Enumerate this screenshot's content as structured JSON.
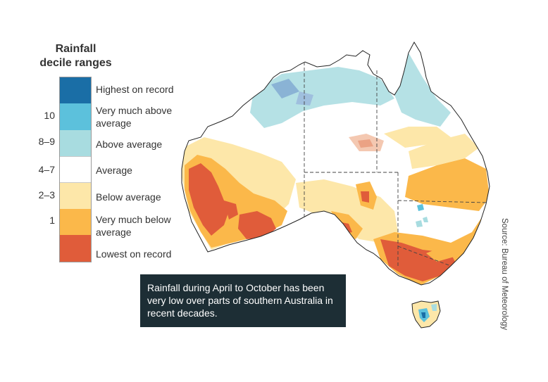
{
  "legend": {
    "title_line1": "Rainfall",
    "title_line2": "decile ranges",
    "items": [
      {
        "decile": "",
        "label": "Highest on record",
        "color": "#1a6ea6"
      },
      {
        "decile": "10",
        "label": "Very much above average",
        "color": "#5cc1dc"
      },
      {
        "decile": "8–9",
        "label": "Above average",
        "color": "#a8dce0"
      },
      {
        "decile": "4–7",
        "label": "Average",
        "color": "#ffffff"
      },
      {
        "decile": "2–3",
        "label": "Below average",
        "color": "#fde7a9"
      },
      {
        "decile": "1",
        "label": "Very much below average",
        "color": "#fbb84a"
      },
      {
        "decile": "",
        "label": "Lowest on record",
        "color": "#e05c3a"
      }
    ]
  },
  "caption": "Rainfall during April to October has been very low over parts of southern Australia in recent decades.",
  "source": "Source: Bureau of Meteorology",
  "colors": {
    "highest": "#1a6ea6",
    "very_much_above": "#5cc1dc",
    "above": "#a8dce0",
    "average": "#ffffff",
    "below": "#fde7a9",
    "very_much_below": "#fbb84a",
    "lowest": "#e05c3a",
    "caption_bg": "#1d2e35",
    "coast": "#222222",
    "border": "#444444"
  }
}
